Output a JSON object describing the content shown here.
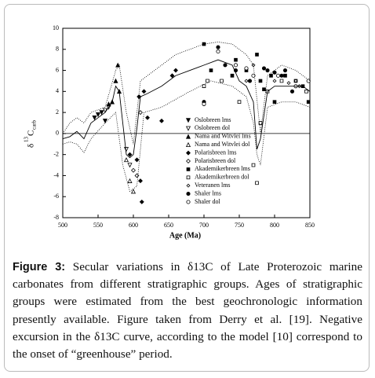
{
  "chart_data": {
    "type": "scatter",
    "xlabel": "Age (Ma)",
    "ylabel": {
      "symbol": "δ",
      "sup": "13",
      "base": "C",
      "sub": "carb"
    },
    "xlim": [
      500,
      850
    ],
    "xticks": [
      500,
      550,
      600,
      650,
      700,
      750,
      800,
      850
    ],
    "ylim": [
      -8,
      10
    ],
    "yticks": [
      -8,
      -6,
      -4,
      -2,
      0,
      2,
      4,
      6,
      8,
      10
    ],
    "reference_line": 0,
    "series": [
      {
        "name": "Oslobreen lms",
        "marker": "triangle-down-filled",
        "x": [
          545,
          550,
          555,
          560
        ],
        "values": [
          1.5,
          1.8,
          2,
          1.2
        ]
      },
      {
        "name": "Oslobreen dol",
        "marker": "triangle-down-open",
        "x": [
          560,
          565,
          590,
          595
        ],
        "values": [
          2.2,
          2.5,
          -1.5,
          -3
        ]
      },
      {
        "name": "Nama and Witvlei lms",
        "marker": "triangle-up-filled",
        "x": [
          565,
          570,
          575,
          578,
          580
        ],
        "values": [
          2.8,
          3,
          5,
          6.5,
          4
        ]
      },
      {
        "name": "Nama and Witvlei dol",
        "marker": "triangle-up-open",
        "x": [
          590,
          595,
          600
        ],
        "values": [
          -2.5,
          -4.5,
          -5.5
        ]
      },
      {
        "name": "Polarisbreen lms",
        "marker": "diamond-filled",
        "x": [
          595,
          605,
          608,
          610,
          612,
          615,
          620,
          640,
          655,
          660
        ],
        "values": [
          -2,
          -2.5,
          3.5,
          -4.5,
          -6.5,
          4,
          1.5,
          1.2,
          5.5,
          6
        ]
      },
      {
        "name": "Polarisbreen dol",
        "marker": "diamond-open",
        "x": [
          600,
          605,
          610
        ],
        "values": [
          -3.5,
          -4,
          2
        ]
      },
      {
        "name": "Akademikerbreen lms",
        "marker": "square-filled",
        "x": [
          700,
          710,
          740,
          745,
          760,
          775,
          780,
          785,
          795,
          800,
          815,
          830,
          840,
          848
        ],
        "values": [
          8.5,
          6,
          5.5,
          7,
          6,
          7.5,
          5,
          4.2,
          5.5,
          3,
          5.5,
          5,
          4.5,
          3
        ]
      },
      {
        "name": "Akademikerbreen dol",
        "marker": "square-open",
        "x": [
          700,
          705,
          725,
          750,
          770,
          775,
          780,
          790,
          810,
          845
        ],
        "values": [
          4.5,
          5,
          5,
          3,
          -3,
          -4.7,
          1,
          4,
          5,
          4
        ]
      },
      {
        "name": "Veteranen lms",
        "marker": "small-diamond-open",
        "x": [
          760,
          770,
          800,
          820,
          830,
          835
        ],
        "values": [
          5,
          6.5,
          5,
          4.8,
          5,
          4.5
        ]
      },
      {
        "name": "Shaler lms",
        "marker": "circle-filled",
        "x": [
          700,
          720,
          730,
          745,
          765,
          785,
          790,
          800,
          810,
          815,
          825
        ],
        "values": [
          3,
          8.2,
          6.5,
          6,
          5,
          6.2,
          6,
          5.8,
          5.5,
          6,
          4
        ]
      },
      {
        "name": "Shaler dol",
        "marker": "circle-open",
        "x": [
          700,
          720,
          745,
          760,
          770,
          805,
          830,
          848
        ],
        "values": [
          2.8,
          7.8,
          6.5,
          6.2,
          5.5,
          5.5,
          4.5,
          5
        ]
      },
      {
        "style": "solid",
        "x": [
          500,
          510,
          520,
          530,
          540,
          550,
          560,
          570,
          575,
          580,
          585,
          590,
          595,
          600,
          605,
          610,
          620,
          640,
          660,
          680,
          700,
          720,
          740,
          750,
          760,
          770,
          775,
          780,
          790,
          800,
          820,
          840,
          850
        ],
        "values": [
          -0.5,
          -0.3,
          0.2,
          -0.5,
          1,
          1.5,
          2,
          3,
          4.5,
          4,
          1,
          -2,
          -2.3,
          -2,
          0.5,
          3.5,
          3.8,
          4.5,
          5.5,
          6,
          6.5,
          7,
          6.5,
          5,
          4.5,
          3,
          -1.5,
          -0.5,
          4,
          4.5,
          4.5,
          4.5,
          4
        ]
      },
      {
        "style": "dotted",
        "x": [
          500,
          510,
          520,
          530,
          540,
          560,
          575,
          580,
          590,
          600,
          610,
          630,
          660,
          700,
          720,
          740,
          760,
          770,
          780,
          790,
          810,
          830,
          850
        ],
        "values": [
          0,
          1,
          1.5,
          1,
          2,
          2.5,
          6,
          6.5,
          2,
          -1,
          5,
          6,
          7.5,
          8.5,
          8.7,
          8.5,
          7.5,
          6.5,
          0,
          5.5,
          6.5,
          6,
          5
        ]
      },
      {
        "style": "dotted",
        "x": [
          500,
          510,
          520,
          530,
          540,
          560,
          575,
          585,
          595,
          605,
          615,
          640,
          680,
          710,
          740,
          760,
          770,
          775,
          780,
          790,
          810,
          830,
          850
        ],
        "values": [
          -1,
          -0.8,
          -1,
          -1.8,
          -0.5,
          1,
          2,
          -3,
          -5.5,
          -5,
          2,
          2.5,
          4,
          5,
          4.5,
          3.5,
          1,
          -2,
          -3,
          2.5,
          3,
          3,
          2.5
        ]
      }
    ]
  },
  "caption": {
    "label": "Figure 3:",
    "text": " Secular variations in δ13C of Late Proterozoic marine carbonates from different stratigraphic groups. Ages of stratigraphic groups were estimated from the best geochronologic information presently available. Figure taken from Derry et al. [19]. Negative excursion in the δ13C curve, according to the model [10] correspond to the onset of “greenhouse” period."
  }
}
